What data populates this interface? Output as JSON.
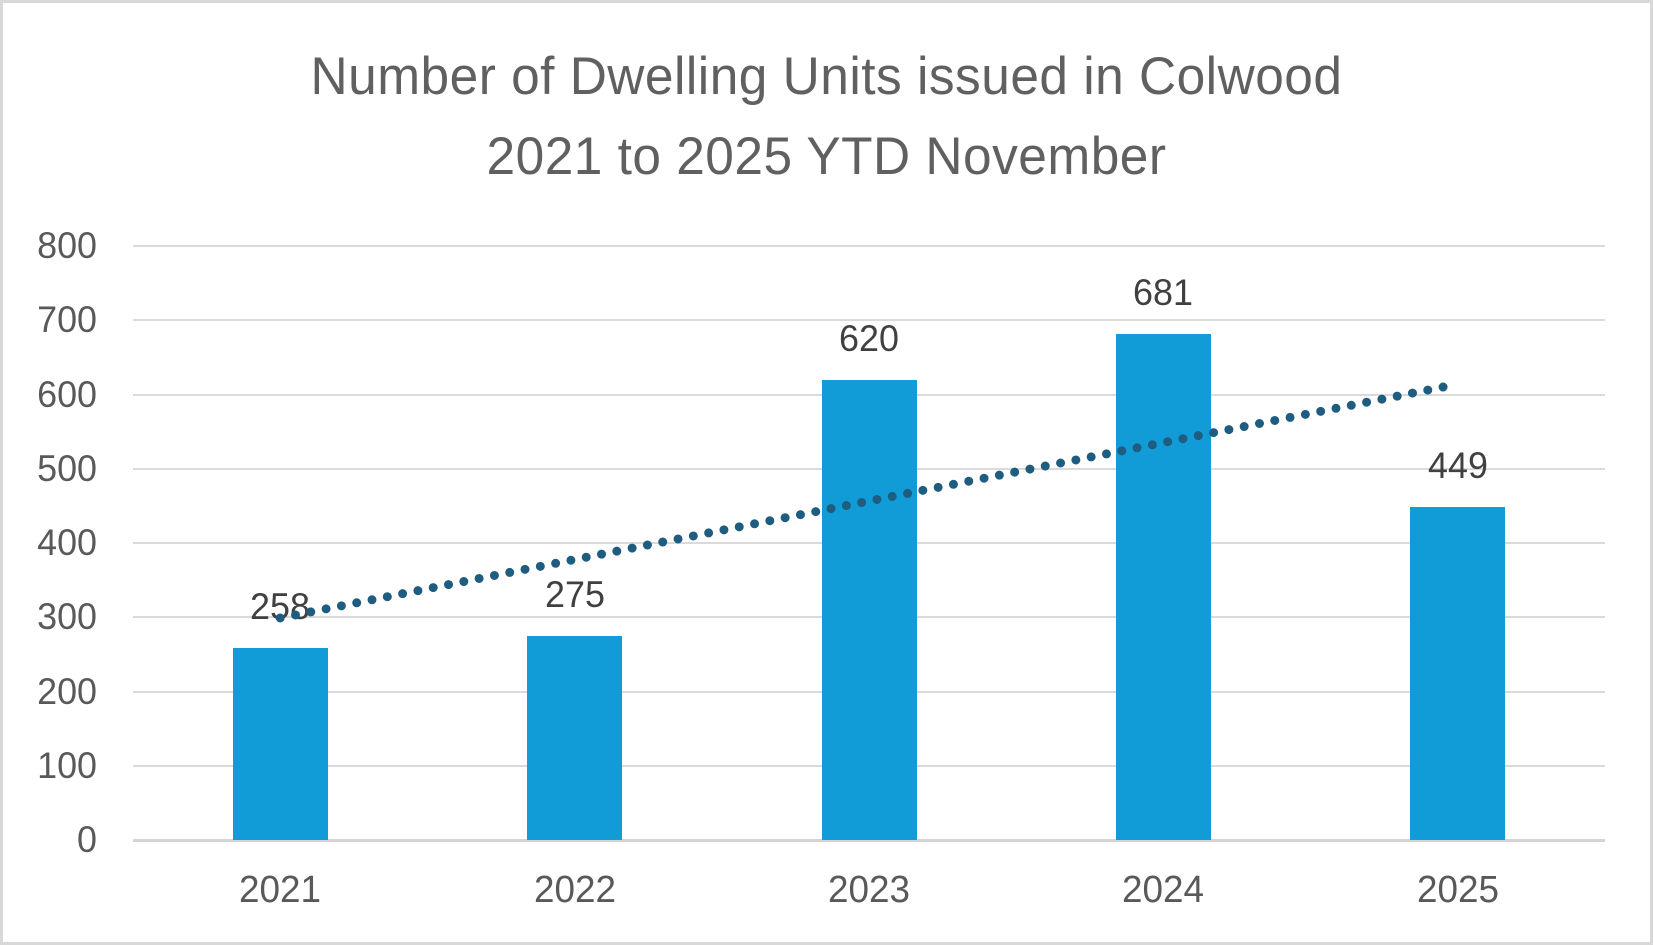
{
  "title": {
    "line1": "Number of Dwelling Units issued in Colwood",
    "line2": "2021 to 2025 YTD November"
  },
  "chart_data": {
    "type": "bar",
    "title": "Number of Dwelling Units issued in Colwood 2021 to 2025 YTD November",
    "categories": [
      "2021",
      "2022",
      "2023",
      "2024",
      "2025"
    ],
    "values": [
      258,
      275,
      620,
      681,
      449
    ],
    "data_labels": [
      "258",
      "275",
      "620",
      "681",
      "449"
    ],
    "xlabel": "",
    "ylabel": "",
    "ylim": [
      0,
      800
    ],
    "ytick_step": 100,
    "ytick_labels": [
      "0",
      "100",
      "200",
      "300",
      "400",
      "500",
      "600",
      "700",
      "800"
    ],
    "grid": true,
    "legend": "none",
    "trendline": {
      "type": "linear",
      "style": "dotted",
      "start_value": 299,
      "end_value": 614
    },
    "colors": {
      "bar": "#119CD8",
      "trendline": "#1E5C80",
      "gridline": "#DADADA",
      "axis_line": "#D4D4D4",
      "axis_text": "#595959",
      "data_label_text": "#404040",
      "title_text": "#606060"
    }
  }
}
